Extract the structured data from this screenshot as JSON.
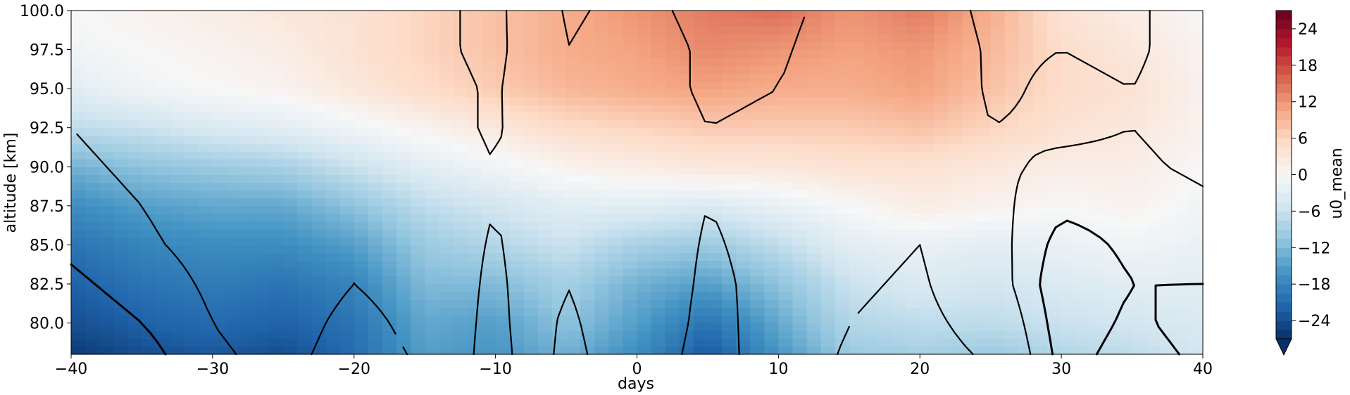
{
  "chart_data": {
    "type": "heatmap",
    "title": "",
    "xlabel": "days",
    "ylabel": "altitude [km]",
    "xlim": [
      -40,
      40
    ],
    "ylim": [
      78,
      100
    ],
    "x_ticks": [
      -40,
      -30,
      -20,
      -10,
      0,
      10,
      20,
      30,
      40
    ],
    "x_tick_labels": [
      "−40",
      "−30",
      "−20",
      "−10",
      "0",
      "10",
      "20",
      "30",
      "40"
    ],
    "y_ticks": [
      80.0,
      82.5,
      85.0,
      87.5,
      90.0,
      92.5,
      95.0,
      97.5,
      100.0
    ],
    "y_tick_labels": [
      "80.0",
      "82.5",
      "85.0",
      "87.5",
      "90.0",
      "92.5",
      "95.0",
      "97.5",
      "100.0"
    ],
    "colorbar": {
      "label": "u0_mean",
      "range": [
        -27,
        27
      ],
      "extend": "min",
      "ticks": [
        -24,
        -18,
        -12,
        -6,
        0,
        6,
        12,
        18,
        24
      ],
      "tick_labels": [
        "−24",
        "−18",
        "−12",
        "−6",
        "0",
        "6",
        "12",
        "18",
        "24"
      ],
      "colormap": "RdBu_r",
      "colors": [
        "#08306b",
        "#2166ac",
        "#4393c3",
        "#92c5de",
        "#d1e5f0",
        "#f7f7f7",
        "#fddbc7",
        "#f4a582",
        "#d6604d",
        "#b2182b",
        "#67001f"
      ]
    },
    "altitudes_km": [
      78,
      80,
      82.5,
      85,
      87.5,
      90,
      92.5,
      95,
      97.5,
      100
    ],
    "days": [
      -40,
      -35,
      -30,
      -25,
      -20,
      -15,
      -10,
      -5,
      0,
      5,
      10,
      15,
      20,
      25,
      30,
      35,
      40
    ],
    "u0_mean": [
      [
        -26,
        -24,
        -23,
        -24,
        -21,
        -15,
        -16,
        -13,
        -17,
        -23,
        -16,
        -10,
        -9,
        -10,
        -8,
        -7,
        -5
      ],
      [
        -24,
        -22,
        -21,
        -22,
        -20,
        -14,
        -15,
        -11,
        -15,
        -20,
        -14,
        -8,
        -7,
        -7,
        -6,
        -5,
        -4
      ],
      [
        -22,
        -20,
        -19,
        -20,
        -18,
        -12,
        -12,
        -9,
        -13,
        -15,
        -11,
        -6,
        -4,
        -5,
        -4,
        -3,
        -3
      ],
      [
        -20,
        -18,
        -17,
        -17,
        -15,
        -10,
        -8,
        -6,
        -9,
        -10,
        -7,
        -3,
        -2,
        -3,
        -2,
        -1,
        -2
      ],
      [
        -17,
        -15,
        -14,
        -14,
        -11,
        -7,
        -5,
        -3,
        -3,
        -4,
        -2,
        0,
        2,
        1,
        0,
        1,
        -1
      ],
      [
        -13,
        -11,
        -10,
        -9,
        -6,
        -3,
        -1,
        1,
        2,
        3,
        3,
        4,
        4,
        3,
        2,
        2,
        0
      ],
      [
        -7,
        -6,
        -4,
        -3,
        -1,
        1,
        3,
        5,
        6,
        7,
        7,
        7,
        8,
        6,
        4,
        3,
        1
      ],
      [
        -3,
        -1,
        0,
        1,
        3,
        5,
        7,
        9,
        10,
        11,
        10,
        10,
        11,
        8,
        5,
        4,
        1
      ],
      [
        -1,
        0,
        1,
        2,
        4,
        6,
        8,
        10,
        11,
        13,
        12,
        11,
        12,
        9,
        5,
        3,
        1
      ],
      [
        0,
        1,
        2,
        3,
        4,
        6,
        8,
        10,
        12,
        14,
        15,
        12,
        14,
        10,
        4,
        2,
        0
      ]
    ],
    "contour_levels": [
      -15,
      -10,
      -5,
      5,
      10
    ],
    "contour_field": [
      [
        15,
        12,
        6,
        3,
        8,
        4,
        -9,
        8,
        -2,
        9,
        0,
        -6,
        -8,
        -4,
        12,
        8,
        11
      ],
      [
        13,
        10,
        5,
        2,
        7,
        3,
        -8,
        7,
        -3,
        8,
        1,
        -5,
        -7,
        -2,
        13,
        9,
        12
      ],
      [
        11,
        8,
        4,
        1,
        5,
        2,
        -7,
        5,
        -3,
        7,
        2,
        -4,
        -6,
        1,
        14,
        10,
        10
      ],
      [
        9,
        6,
        3,
        0,
        4,
        1,
        -6,
        4,
        -2,
        6,
        2,
        -3,
        -5,
        2,
        12,
        9,
        8
      ],
      [
        7,
        5,
        2,
        -1,
        3,
        0,
        -5,
        3,
        -1,
        5,
        2,
        -2,
        -4,
        3,
        9,
        8,
        6
      ],
      [
        6,
        4,
        1,
        -2,
        2,
        -1,
        -5,
        3,
        0,
        4,
        3,
        -2,
        -4,
        4,
        6,
        6,
        4
      ],
      [
        5,
        3,
        0,
        -3,
        2,
        -2,
        -6,
        4,
        1,
        5,
        4,
        -1,
        -3,
        5,
        4,
        5,
        3
      ],
      [
        5,
        2,
        -1,
        -4,
        2,
        -2,
        -6,
        5,
        2,
        6,
        5,
        0,
        -2,
        6,
        4,
        5,
        2
      ],
      [
        4,
        2,
        -1,
        -4,
        2,
        -3,
        -7,
        5,
        2,
        6,
        6,
        1,
        -1,
        6,
        5,
        6,
        2
      ],
      [
        4,
        1,
        -2,
        -5,
        2,
        -3,
        -7,
        6,
        3,
        7,
        7,
        2,
        0,
        7,
        5,
        6,
        2
      ]
    ]
  }
}
